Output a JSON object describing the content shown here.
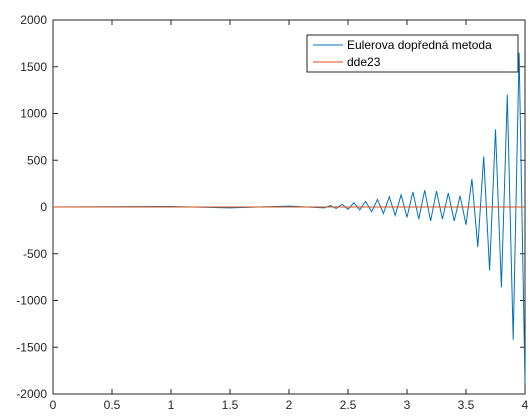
{
  "chart_data": {
    "type": "line",
    "xlim": [
      0,
      4
    ],
    "ylim": [
      -2000,
      2000
    ],
    "x_ticks": [
      "0",
      "0.5",
      "1",
      "1.5",
      "2",
      "2.5",
      "3",
      "3.5",
      "4"
    ],
    "y_ticks": [
      "2000",
      "1500",
      "1000",
      "500",
      "0",
      "-500",
      "-1000",
      "-1500",
      "-2000"
    ],
    "grid": false,
    "legend": {
      "placement": "top-right",
      "entries": [
        "Eulerova dopředná metoda",
        "dde23"
      ]
    },
    "series": [
      {
        "name": "Eulerova dopředná metoda",
        "color": "#0072BD",
        "x": [
          0,
          1.0,
          1.5,
          2.0,
          2.3,
          2.35,
          2.4,
          2.45,
          2.5,
          2.55,
          2.6,
          2.65,
          2.7,
          2.75,
          2.8,
          2.85,
          2.9,
          2.95,
          3.0,
          3.05,
          3.1,
          3.15,
          3.2,
          3.25,
          3.3,
          3.35,
          3.4,
          3.45,
          3.5,
          3.55,
          3.6,
          3.65,
          3.7,
          3.75,
          3.8,
          3.85,
          3.9,
          3.95,
          4.0
        ],
        "y": [
          0,
          5,
          -10,
          10,
          -10,
          15,
          -15,
          30,
          -25,
          45,
          -30,
          60,
          -50,
          80,
          -70,
          110,
          -90,
          130,
          -110,
          160,
          -130,
          180,
          -150,
          170,
          -130,
          150,
          -150,
          120,
          -190,
          300,
          -430,
          540,
          -680,
          830,
          -860,
          1200,
          -1420,
          1650,
          -1880
        ]
      },
      {
        "name": "dde23",
        "color": "#D95319",
        "x": [
          0,
          4
        ],
        "y": [
          0,
          0
        ]
      }
    ]
  }
}
